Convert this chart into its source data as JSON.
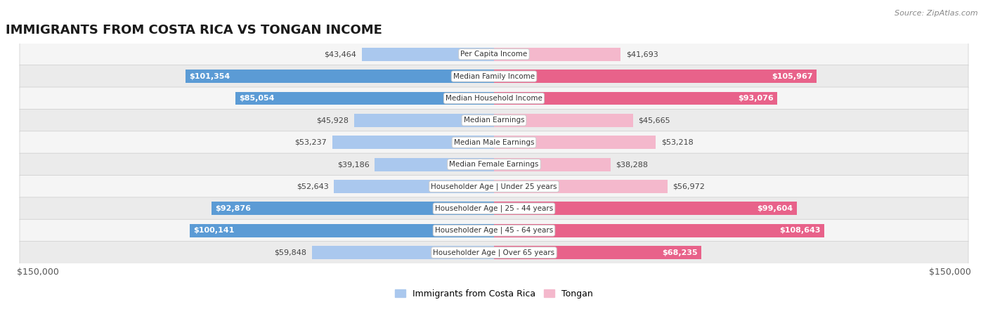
{
  "title": "IMMIGRANTS FROM COSTA RICA VS TONGAN INCOME",
  "source": "Source: ZipAtlas.com",
  "categories": [
    "Per Capita Income",
    "Median Family Income",
    "Median Household Income",
    "Median Earnings",
    "Median Male Earnings",
    "Median Female Earnings",
    "Householder Age | Under 25 years",
    "Householder Age | 25 - 44 years",
    "Householder Age | 45 - 64 years",
    "Householder Age | Over 65 years"
  ],
  "costa_rica_values": [
    43464,
    101354,
    85054,
    45928,
    53237,
    39186,
    52643,
    92876,
    100141,
    59848
  ],
  "tongan_values": [
    41693,
    105967,
    93076,
    45665,
    53218,
    38288,
    56972,
    99604,
    108643,
    68235
  ],
  "costa_rica_labels": [
    "$43,464",
    "$101,354",
    "$85,054",
    "$45,928",
    "$53,237",
    "$39,186",
    "$52,643",
    "$92,876",
    "$100,141",
    "$59,848"
  ],
  "tongan_labels": [
    "$41,693",
    "$105,967",
    "$93,076",
    "$45,665",
    "$53,218",
    "$38,288",
    "$56,972",
    "$99,604",
    "$108,643",
    "$68,235"
  ],
  "costa_rica_color_light": "#aac8ee",
  "costa_rica_color_dark": "#5b9bd5",
  "tongan_color_light": "#f4b8cc",
  "tongan_color_dark": "#e8628a",
  "max_value": 150000,
  "bar_height": 0.6,
  "row_bg_light": "#f2f2f2",
  "row_bg_dark": "#e8e8e8",
  "title_fontsize": 13,
  "axis_label": "$150,000",
  "inner_label_threshold": 65000,
  "legend_label_cr": "Immigrants from Costa Rica",
  "legend_label_to": "Tongan"
}
